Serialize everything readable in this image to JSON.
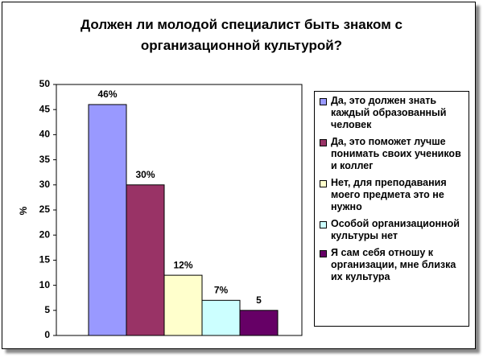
{
  "chart_data": {
    "type": "bar",
    "title": "Должен ли молодой специалист быть знаком с организационной культурой?",
    "y_label": "%",
    "categories": [
      null
    ],
    "series": [
      {
        "name": "Да, это должен знать каждый образованный человек",
        "color": "#9999ff",
        "values": [
          46
        ],
        "value_labels": [
          "46%"
        ]
      },
      {
        "name": "Да, это поможет лучше понимать своих учеников и коллег",
        "color": "#993366",
        "values": [
          30
        ],
        "value_labels": [
          "30%"
        ]
      },
      {
        "name": "Нет, для преподавания моего предмета это не нужно",
        "color": "#ffffcc",
        "values": [
          12
        ],
        "value_labels": [
          "12%"
        ]
      },
      {
        "name": "Особой организационной культуры нет",
        "color": "#ccffff",
        "values": [
          7
        ],
        "value_labels": [
          "7%"
        ]
      },
      {
        "name": "Я сам себя отношу к организации, мне близка их культура",
        "color": "#660066",
        "values": [
          5
        ],
        "value_labels": [
          "5"
        ]
      }
    ],
    "ylim": [
      0,
      50
    ],
    "yticks": [
      0,
      5,
      10,
      15,
      20,
      25,
      30,
      35,
      40,
      45,
      50
    ],
    "grid": false,
    "legend": "right"
  }
}
